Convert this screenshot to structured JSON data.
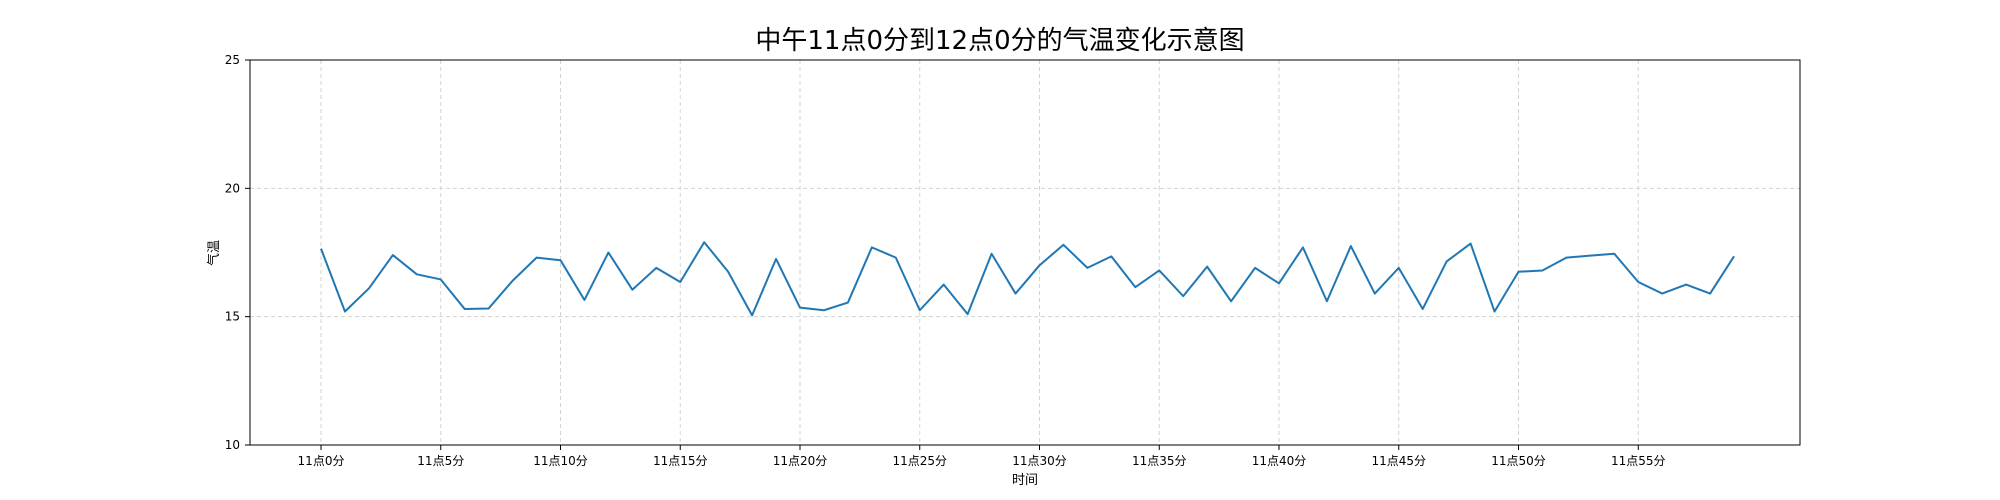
{
  "chart_data": {
    "type": "line",
    "title": "中午11点0分到12点0分的气温变化示意图",
    "xlabel": "时间",
    "ylabel": "气温",
    "x": [
      "11点0分",
      "11点1分",
      "11点2分",
      "11点3分",
      "11点4分",
      "11点5分",
      "11点6分",
      "11点7分",
      "11点8分",
      "11点9分",
      "11点10分",
      "11点11分",
      "11点12分",
      "11点13分",
      "11点14分",
      "11点15分",
      "11点16分",
      "11点17分",
      "11点18分",
      "11点19分",
      "11点20分",
      "11点21分",
      "11点22分",
      "11点23分",
      "11点24分",
      "11点25分",
      "11点26分",
      "11点27分",
      "11点28分",
      "11点29分",
      "11点30分",
      "11点31分",
      "11点32分",
      "11点33分",
      "11点34分",
      "11点35分",
      "11点36分",
      "11点37分",
      "11点38分",
      "11点39分",
      "11点40分",
      "11点41分",
      "11点42分",
      "11点43分",
      "11点44分",
      "11点45分",
      "11点46分",
      "11点47分",
      "11点48分",
      "11点49分",
      "11点50分",
      "11点51分",
      "11点52分",
      "11点53分",
      "11点54分",
      "11点55分",
      "11点56分",
      "11点57分",
      "11点58分",
      "11点59分"
    ],
    "x_ticks": [
      "11点0分",
      "11点5分",
      "11点10分",
      "11点15分",
      "11点20分",
      "11点25分",
      "11点30分",
      "11点35分",
      "11点40分",
      "11点45分",
      "11点50分",
      "11点55分"
    ],
    "y_ticks": [
      10,
      15,
      20,
      25
    ],
    "ylim": [
      10,
      25
    ],
    "series": [
      {
        "values": [
          17.65,
          15.2,
          16.1,
          17.4,
          16.65,
          16.45,
          15.3,
          15.32,
          16.4,
          17.3,
          17.2,
          15.65,
          17.5,
          16.05,
          16.9,
          16.35,
          17.9,
          16.75,
          15.05,
          17.25,
          15.35,
          15.25,
          15.55,
          17.7,
          17.3,
          15.25,
          16.25,
          15.1,
          17.45,
          15.9,
          17.0,
          17.8,
          16.9,
          17.35,
          16.15,
          16.8,
          15.8,
          16.95,
          15.6,
          16.9,
          16.3,
          17.7,
          15.6,
          17.75,
          15.9,
          16.9,
          15.3,
          17.15,
          17.85,
          15.2,
          16.75,
          16.8,
          17.3,
          17.38,
          17.45,
          16.35,
          15.9,
          16.25,
          15.9,
          17.35
        ],
        "color": "#1f77b4"
      }
    ],
    "grid": true,
    "grid_color": "#d3d3d3",
    "grid_style": "dashed"
  }
}
